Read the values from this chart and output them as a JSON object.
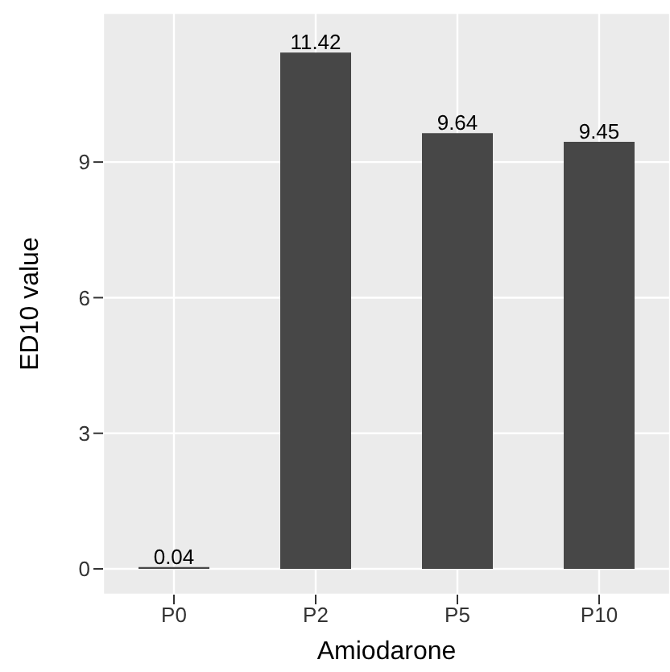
{
  "chart_data": {
    "type": "bar",
    "xlabel": "Amiodarone",
    "ylabel": "ED10 value",
    "categories": [
      "P0",
      "P2",
      "P5",
      "P10"
    ],
    "values": [
      0.04,
      11.42,
      9.64,
      9.45
    ],
    "color": "#474747",
    "ylim": [
      -0.57,
      12.3
    ],
    "yticks": [
      0,
      3,
      6,
      9
    ],
    "grid": true,
    "data_labels": true
  }
}
